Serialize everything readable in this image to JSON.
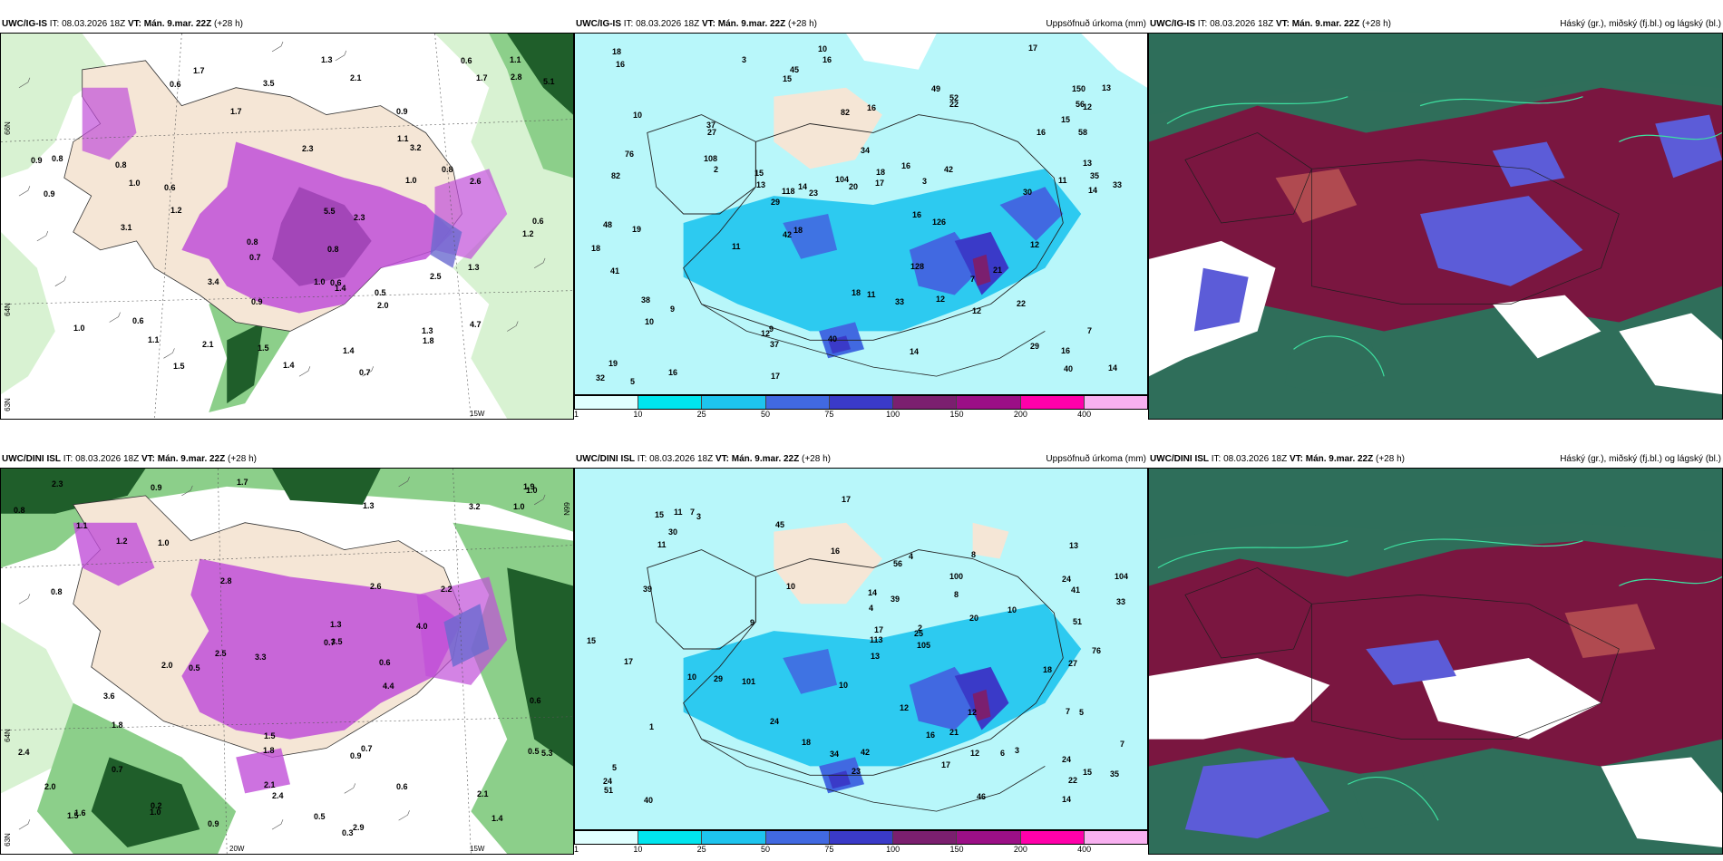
{
  "rows": [
    {
      "model": "UWC/IG-IS",
      "it_label": "IT:",
      "it_value": "08.03.2026 18Z",
      "vt_label": "VT:",
      "vt_value": "Mán. 9.mar. 22Z",
      "lead": "(+28 h)",
      "precip_title": "Uppsöfnuð úrkoma (mm)",
      "cloud_title": "Háský (gr.), miðský (fj.bl.) og lágský (bl.)",
      "lat_labels": [
        "66N",
        "64N",
        "63N"
      ],
      "lon_labels": [
        "15W"
      ],
      "precip_values": [
        "5",
        "7",
        "3",
        "2",
        "7",
        "3",
        "16",
        "20",
        "14",
        "11",
        "16",
        "14",
        "13",
        "9",
        "33",
        "12",
        "10",
        "12",
        "11",
        "9",
        "18",
        "15",
        "16",
        "16",
        "13",
        "14",
        "17",
        "16",
        "49",
        "14",
        "27",
        "37",
        "37",
        "34",
        "48",
        "56",
        "29",
        "82",
        "15",
        "16",
        "12",
        "13",
        "33",
        "45",
        "58",
        "40",
        "42",
        "52",
        "22",
        "18",
        "18",
        "118",
        "126",
        "16",
        "82",
        "128",
        "150",
        "104",
        "108",
        "76",
        "42",
        "29",
        "22",
        "23",
        "21",
        "18",
        "19",
        "17",
        "16",
        "15",
        "12",
        "10",
        "11",
        "12",
        "10",
        "17",
        "18",
        "40",
        "32",
        "35",
        "38",
        "41",
        "30",
        "19"
      ],
      "snow_values": [
        "0.7",
        "0.6",
        "0.6",
        "0.8",
        "0.8",
        "1.4",
        "1.2",
        "1.2",
        "0.7",
        "1.1",
        "1.0",
        "0.9",
        "0.8",
        "0.6",
        "1.0",
        "0.6",
        "0.9",
        "1.7",
        "2.5",
        "2.6",
        "1.3",
        "1.4",
        "1.5",
        "1.8",
        "2.3",
        "3.2",
        "3.1",
        "1.0",
        "1.4",
        "1.7",
        "2.0",
        "1.1",
        "0.9",
        "2.1",
        "1.7",
        "1.5",
        "1.3",
        "0.8",
        "0.6",
        "0.5",
        "3.5",
        "5.5",
        "5.1",
        "4.7",
        "2.1",
        "1.3",
        "1.0",
        "0.9",
        "0.8",
        "2.8",
        "3.4",
        "2.3",
        "0.6",
        "1.1"
      ]
    },
    {
      "model": "UWC/DINI ISL",
      "it_label": "IT:",
      "it_value": "08.03.2026 18Z",
      "vt_label": "VT:",
      "vt_value": "Mán. 9.mar. 22Z",
      "lead": "(+28 h)",
      "precip_title": "Uppsöfnuð úrkoma (mm)",
      "cloud_title": "Háský (gr.), miðský (fj.bl.) og lágský (bl.)",
      "lat_labels": [
        "66N",
        "64N",
        "63N"
      ],
      "lon_labels": [
        "20W",
        "15W"
      ],
      "precip_values": [
        "1",
        "2",
        "7",
        "7",
        "4",
        "3",
        "4",
        "8",
        "5",
        "5",
        "3",
        "12",
        "27",
        "23",
        "15",
        "18",
        "14",
        "24",
        "22",
        "12",
        "10",
        "8",
        "9",
        "10",
        "7",
        "15",
        "6",
        "17",
        "11",
        "20",
        "34",
        "24",
        "17",
        "41",
        "51",
        "56",
        "24",
        "10",
        "30",
        "39",
        "100",
        "105",
        "113",
        "104",
        "101",
        "76",
        "46",
        "42",
        "21",
        "29",
        "25",
        "17",
        "18",
        "15",
        "16",
        "13",
        "10",
        "11",
        "12",
        "14",
        "13",
        "16",
        "17",
        "24",
        "33",
        "35",
        "39",
        "40",
        "45",
        "51"
      ],
      "snow_values": [
        "0.9",
        "0.3",
        "0.2",
        "0.6",
        "0.9",
        "1.1",
        "2.0",
        "1.4",
        "1.7",
        "2.8",
        "3.2",
        "2.4",
        "2.5",
        "1.8",
        "1.3",
        "0.7",
        "0.8",
        "1.0",
        "0.5",
        "0.8",
        "0.9",
        "1.0",
        "1.3",
        "1.5",
        "2.2",
        "3.6",
        "2.4",
        "1.8",
        "2.3",
        "4.4",
        "3.3",
        "2.9",
        "1.5",
        "1.0",
        "0.7",
        "0.6",
        "0.5",
        "2.0",
        "2.6",
        "2.1",
        "3.5",
        "4.0",
        "5.3",
        "1.6",
        "1.0",
        "0.7",
        "0.6",
        "0.5",
        "1.2",
        "2.1",
        "1.9"
      ]
    }
  ],
  "colorbar": {
    "labels": [
      "1",
      "10",
      "25",
      "50",
      "75",
      "100",
      "150",
      "200",
      "400"
    ],
    "colors": [
      "#e0ffff",
      "#00e5ee",
      "#1ec4ee",
      "#4169e1",
      "#3a3ac8",
      "#7b1f6f",
      "#9b0f86",
      "#ff00aa",
      "#f8b0f0"
    ]
  },
  "palette": {
    "snow_light": "#d8f2d2",
    "snow_mid": "#8ccf8a",
    "snow_dark": "#1f5e2a",
    "land": "#f5e6d6",
    "snow_purple": "#c04fd8",
    "precip_base": "#b8f7fa",
    "cloud_high": "#2f6e5a",
    "cloud_mid": "#7a1640",
    "cloud_low": "#5c5cd8"
  }
}
